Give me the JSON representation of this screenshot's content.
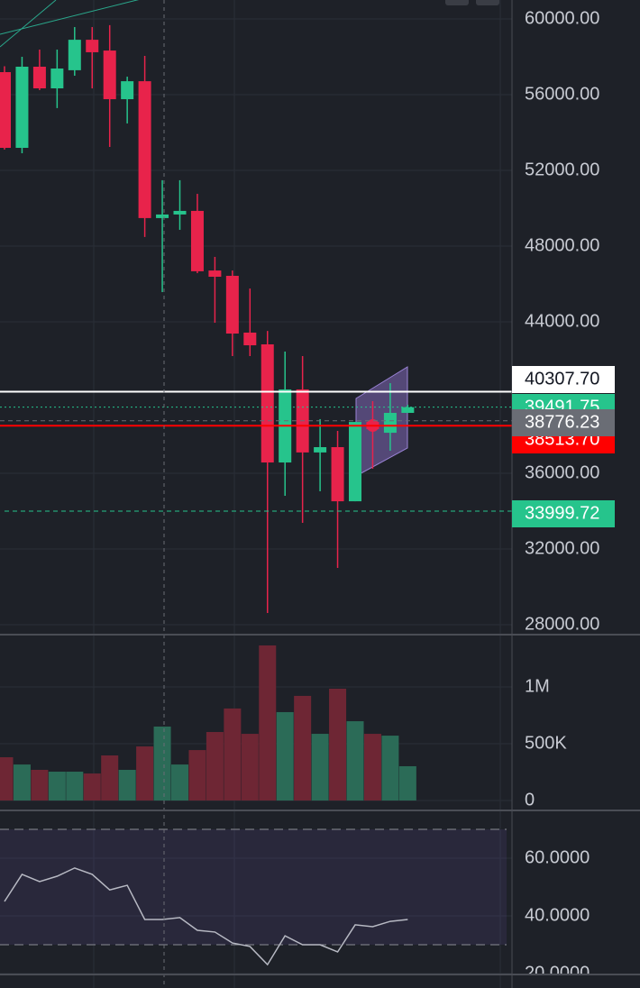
{
  "chart_data": [
    {
      "type": "candlestick",
      "categories": [
        null,
        null,
        null,
        null,
        null,
        null,
        null,
        null,
        null,
        null,
        null,
        null,
        null,
        null,
        null,
        null,
        null,
        null,
        null,
        null,
        null,
        null,
        null,
        null
      ],
      "open": [
        57190,
        53190,
        57476,
        56333,
        57290,
        58900,
        58330,
        55760,
        56710,
        49480,
        49670,
        49860,
        46710,
        46430,
        43430,
        42810,
        36570,
        40430,
        37100,
        37380,
        34520,
        38710,
        38140,
        39190
      ],
      "high": [
        57500,
        58000,
        58380,
        58380,
        59570,
        59570,
        59670,
        56950,
        58050,
        51480,
        51480,
        50760,
        47430,
        46710,
        45760,
        43520,
        42430,
        42190,
        38860,
        38240,
        38710,
        39810,
        40760,
        39620
      ],
      "low": [
        53100,
        52905,
        56240,
        55290,
        57000,
        56330,
        53240,
        54480,
        48480,
        45570,
        48860,
        46570,
        43950,
        42190,
        42190,
        28620,
        34810,
        33380,
        35050,
        31000,
        34520,
        36240,
        37190,
        39190
      ],
      "close": [
        53190,
        57476,
        56333,
        57380,
        58900,
        58240,
        55760,
        56710,
        49480,
        49670,
        49860,
        46670,
        46380,
        43380,
        42760,
        36570,
        40430,
        37100,
        37380,
        34520,
        38710,
        38330,
        39190,
        39491.75
      ],
      "up_color": "#26c48c",
      "down_color": "#e8234b",
      "ylim": [
        27524,
        61000
      ],
      "yticks": [
        {
          "value": 28000,
          "label": "28000.00"
        },
        {
          "value": 32000,
          "label": "32000.00"
        },
        {
          "value": 36000,
          "label": "36000.00"
        },
        {
          "value": 44000,
          "label": "44000.00"
        },
        {
          "value": 48000,
          "label": "48000.00"
        },
        {
          "value": 52000,
          "label": "52000.00"
        },
        {
          "value": 56000,
          "label": "56000.00"
        },
        {
          "value": 60000,
          "label": "60000.00"
        }
      ],
      "price_lines": [
        {
          "value": 40307.7,
          "label": "40307.70",
          "color": "#ffffff",
          "style": "solid"
        },
        {
          "value": 39491.75,
          "label": "39491.75",
          "color": "#26c48c",
          "style": "dotted"
        },
        {
          "value": 38513.7,
          "label": "38513.70",
          "color": "#ff0000",
          "style": "solid"
        },
        {
          "value": 38776.23,
          "label": "38776.23",
          "color": "#6a6d75",
          "style": "dashed"
        },
        {
          "value": 33999.72,
          "label": "33999.72",
          "color": "#26c48c",
          "style": "dashed"
        }
      ]
    },
    {
      "type": "bar",
      "categories": [
        null,
        null,
        null,
        null,
        null,
        null,
        null,
        null,
        null,
        null,
        null,
        null,
        null,
        null,
        null,
        null,
        null,
        null,
        null,
        null,
        null,
        null,
        null,
        null
      ],
      "values": [
        381000,
        317000,
        270000,
        254000,
        254000,
        238000,
        397000,
        270000,
        476000,
        651000,
        317000,
        444000,
        603000,
        810000,
        587000,
        1365000,
        778000,
        921000,
        587000,
        984000,
        698000,
        587000,
        571000,
        302000
      ],
      "colors": [
        "#6e2634",
        "#2b6b57",
        "#6e2634",
        "#2b6b57",
        "#2b6b57",
        "#6e2634",
        "#6e2634",
        "#2b6b57",
        "#6e2634",
        "#2b6b57",
        "#2b6b57",
        "#6e2634",
        "#6e2634",
        "#6e2634",
        "#6e2634",
        "#6e2634",
        "#2b6b57",
        "#6e2634",
        "#2b6b57",
        "#6e2634",
        "#2b6b57",
        "#6e2634",
        "#2b6b57",
        "#2b6b57"
      ],
      "ylim": [
        -79000,
        1452000
      ],
      "yticks": [
        0,
        {
          "value": 500000,
          "label": "500K"
        },
        {
          "value": 1000000,
          "label": "1M"
        }
      ]
    },
    {
      "type": "line",
      "categories": [
        null,
        null,
        null,
        null,
        null,
        null,
        null,
        null,
        null,
        null,
        null,
        null,
        null,
        null,
        null,
        null,
        null,
        null,
        null,
        null,
        null,
        null,
        null,
        null
      ],
      "values": [
        45,
        54.4,
        51.9,
        53.75,
        56.6,
        54.4,
        49,
        50.6,
        38.75,
        38.75,
        39.4,
        35,
        34.4,
        30.6,
        29.4,
        23.1,
        33.1,
        30,
        30,
        27.5,
        36.9,
        36.25,
        38.1,
        38.75
      ],
      "color": "#b7b9c3",
      "ylim": [
        20,
        76.25
      ],
      "yticks": [
        {
          "value": 20,
          "label": "20.0000"
        },
        {
          "value": 40,
          "label": "40.0000"
        },
        {
          "value": 60,
          "label": "60.0000"
        }
      ],
      "bands": [
        30,
        70
      ]
    }
  ]
}
